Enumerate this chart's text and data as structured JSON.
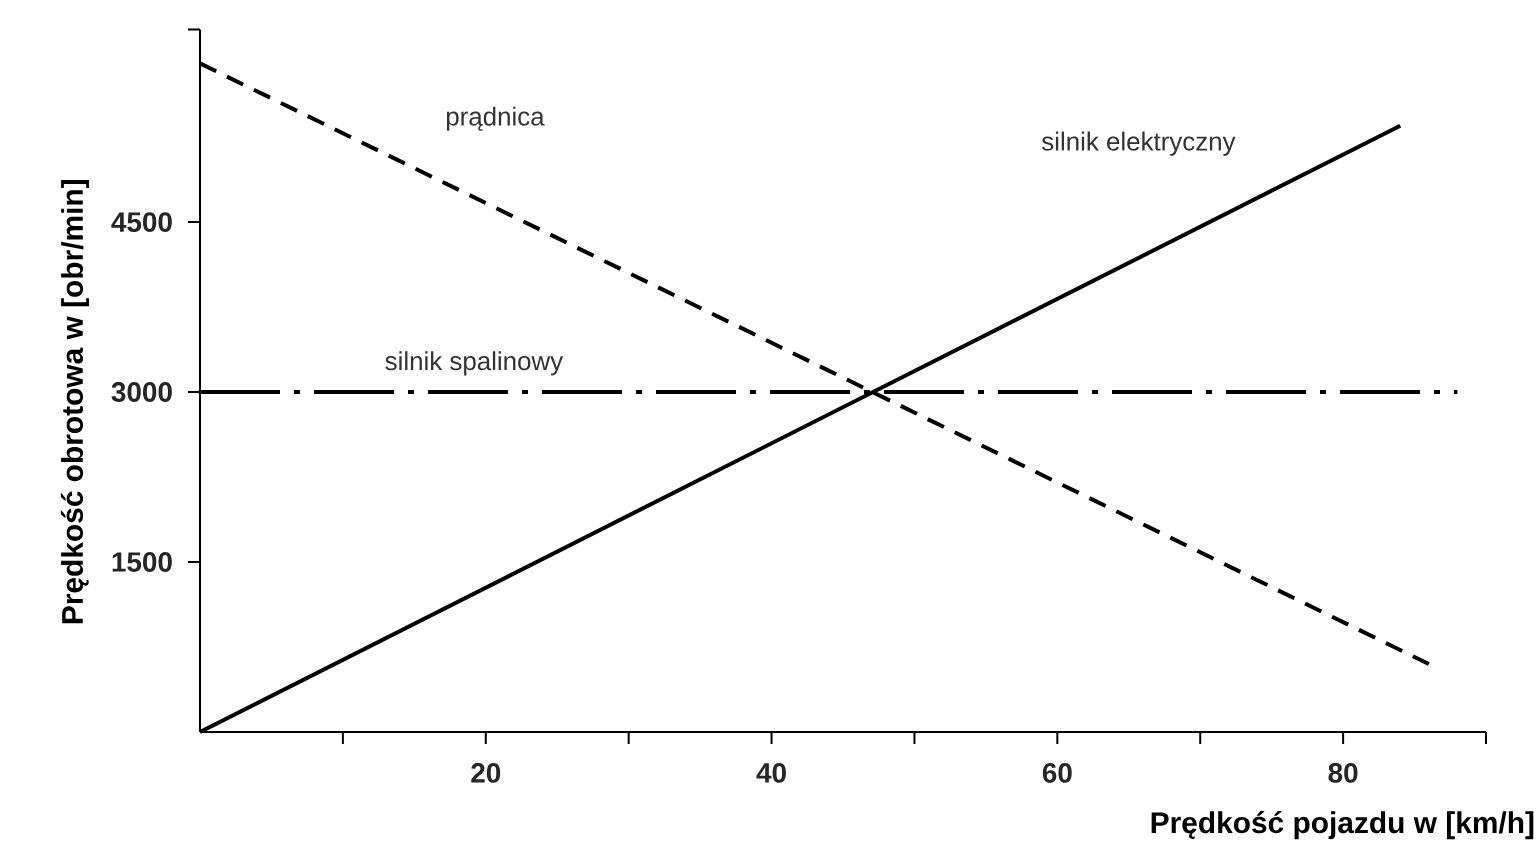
{
  "chart_data": {
    "type": "line",
    "xlabel": "Prędkość pojazdu w [km/h]",
    "ylabel": "Prędkość obrotowa w [obr/min]",
    "xlim": [
      0,
      90
    ],
    "ylim": [
      0,
      6200
    ],
    "xticks": [
      {
        "value": 10,
        "label": null
      },
      20,
      {
        "value": 30,
        "label": null
      },
      40,
      {
        "value": 50,
        "label": null
      },
      60,
      {
        "value": 70,
        "label": null
      },
      80,
      {
        "value": 90,
        "label": null
      }
    ],
    "yticks": [
      1500,
      3000,
      4500,
      {
        "value": 6200,
        "label": null
      }
    ],
    "series": [
      {
        "name": "silnik elektryczny",
        "color": "#000000",
        "line_style": "solid",
        "x": [
          0,
          84
        ],
        "values": [
          0,
          5350
        ]
      },
      {
        "name": "prądnica",
        "color": "#000000",
        "line_style": "dashed",
        "x": [
          0,
          86
        ],
        "values": [
          5900,
          600
        ]
      },
      {
        "name": "silnik spalinowy",
        "color": "#000000",
        "line_style": "dashdot",
        "x": [
          0,
          88
        ],
        "values": [
          3000,
          3000
        ]
      }
    ],
    "grid": false,
    "marker": "none"
  }
}
